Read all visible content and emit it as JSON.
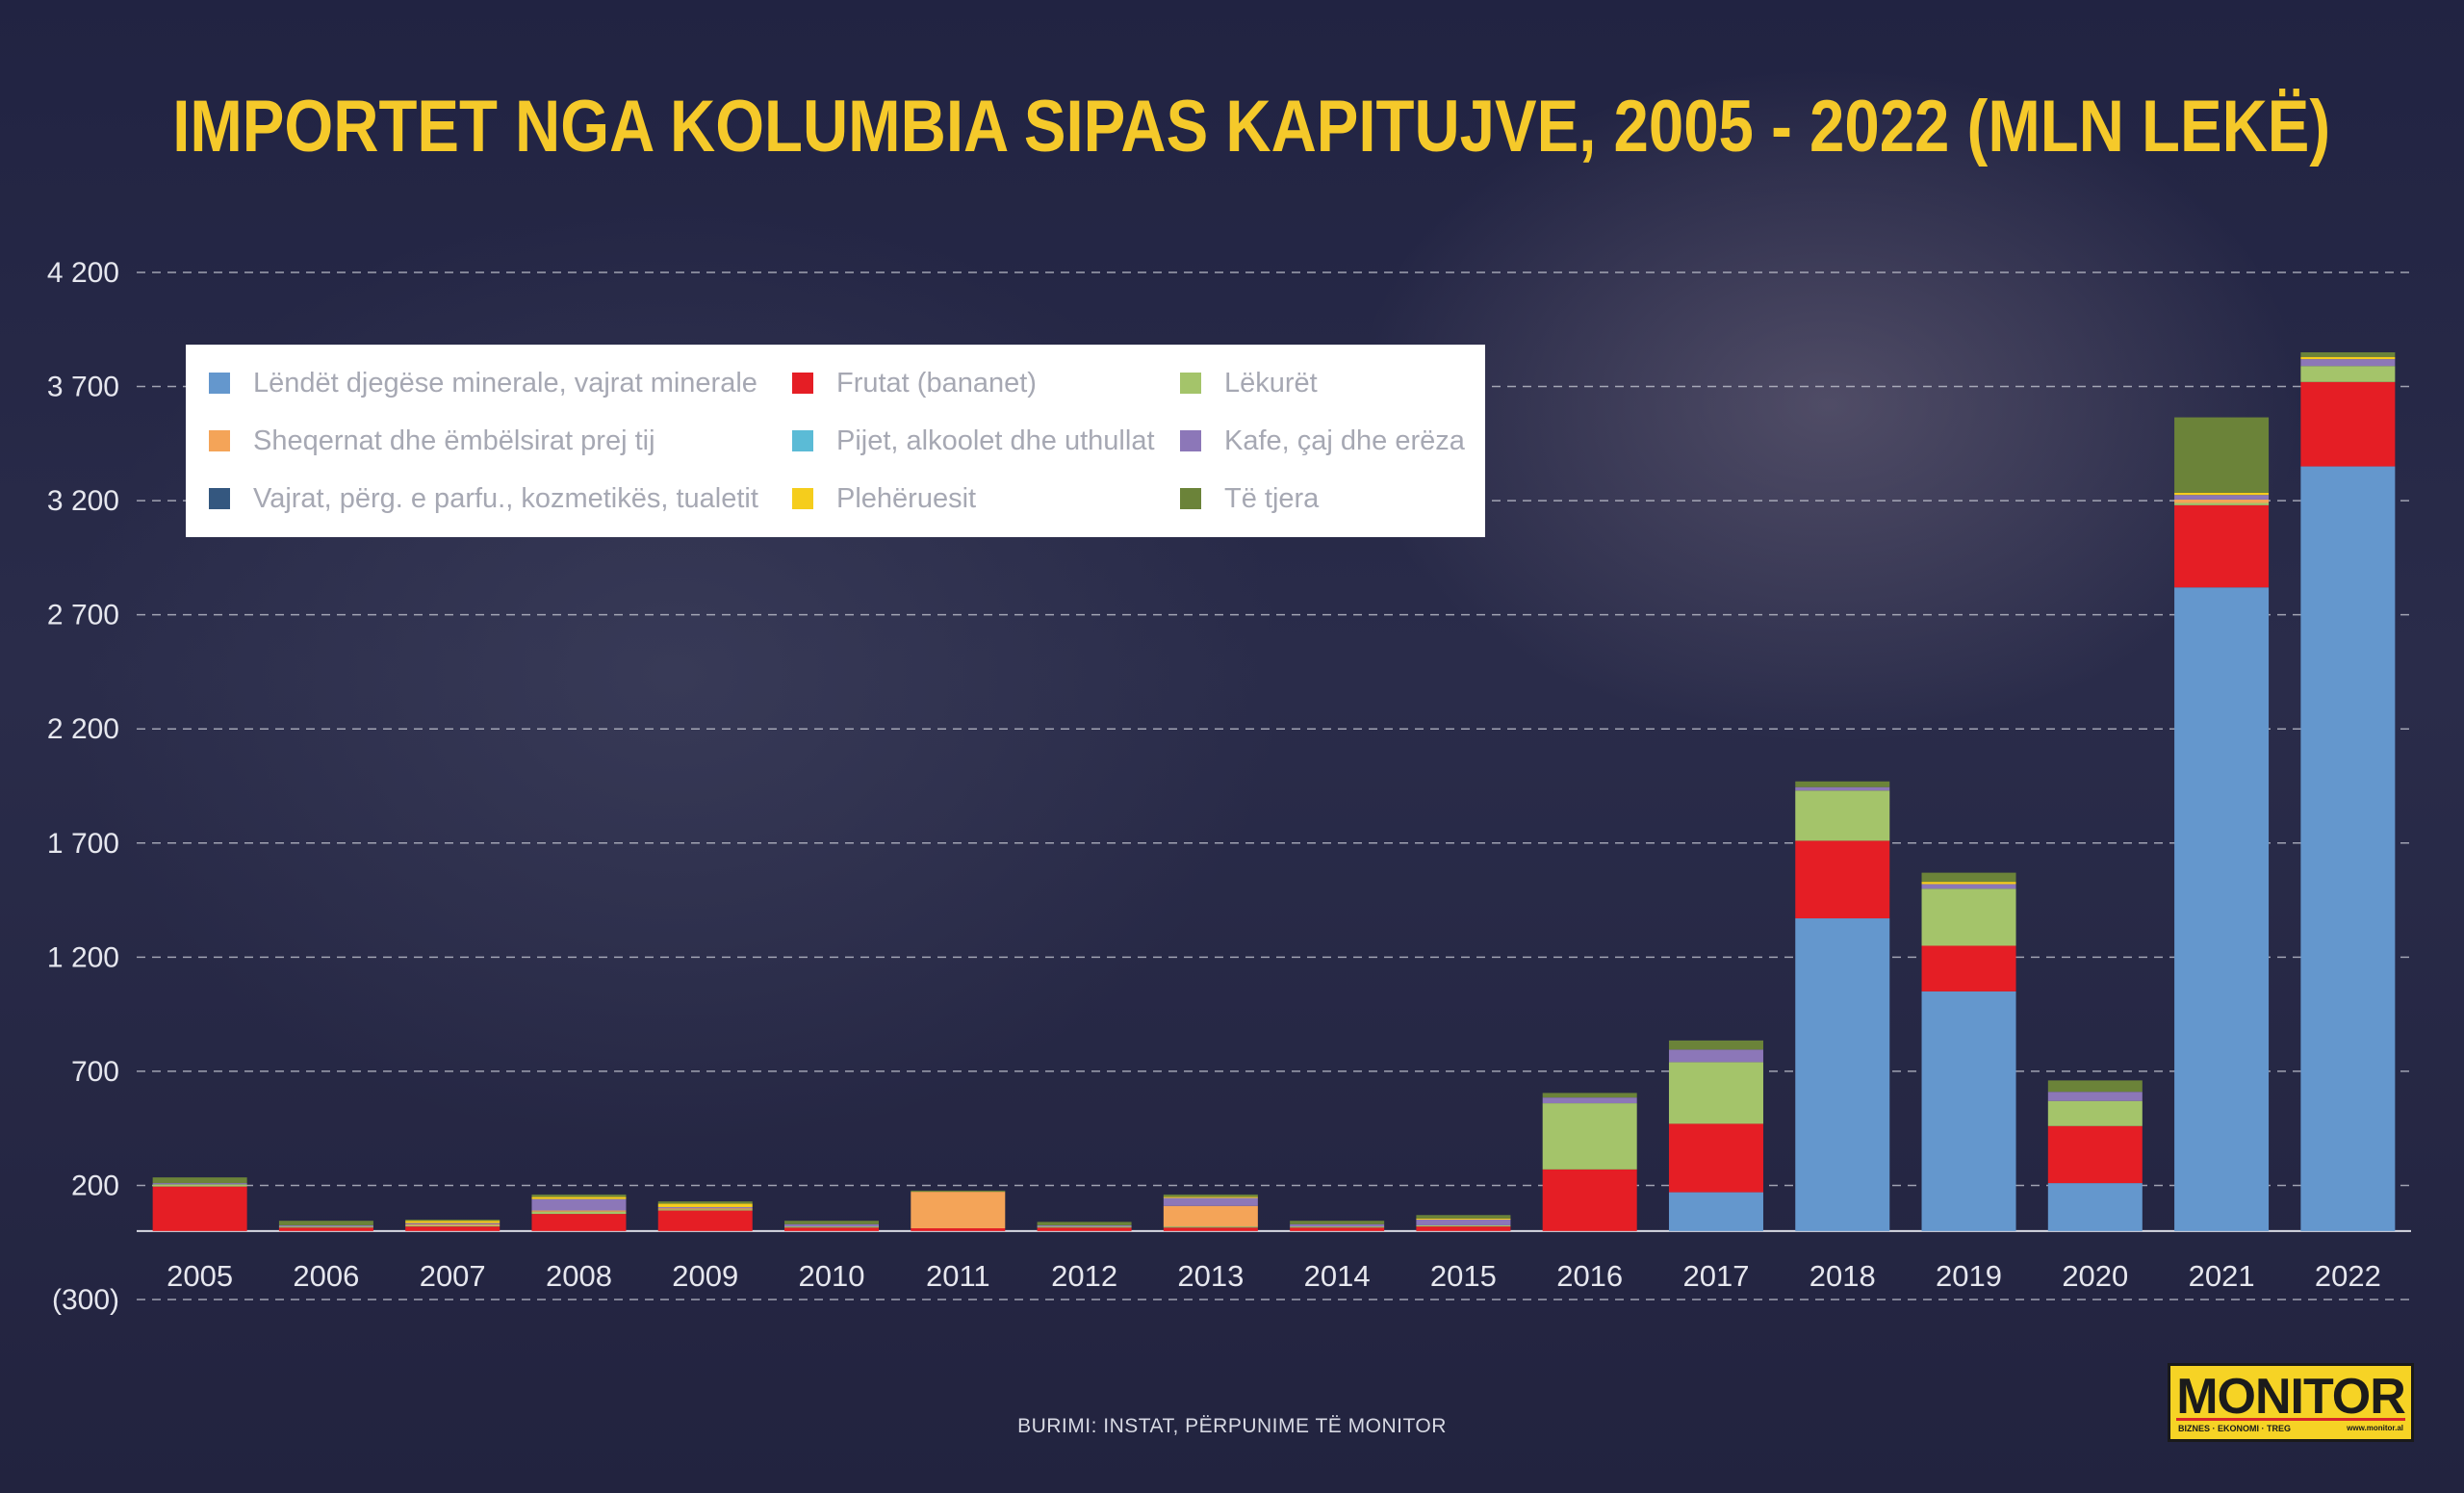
{
  "title": "IMPORTET NGA KOLUMBIA SIPAS KAPITUJVE, 2005 - 2022 (MLN LEKË)",
  "source": "BURIMI: INSTAT, PËRPUNIME TË MONITOR",
  "logo": {
    "name": "MONITOR",
    "tagline": "BIZNES · EKONOMI · TREG",
    "url": "www.monitor.al"
  },
  "chart_data": {
    "type": "bar",
    "stacked": true,
    "title": "IMPORTET NGA KOLUMBIA SIPAS KAPITUJVE, 2005 - 2022 (MLN LEKË)",
    "xlabel": "",
    "ylabel": "",
    "ylim": [
      -300,
      4200
    ],
    "y_ticks": [
      4200,
      3700,
      3200,
      2700,
      2200,
      1700,
      1200,
      700,
      200,
      -300
    ],
    "y_tick_labels": [
      "4 200",
      "3 700",
      "3 200",
      "2 700",
      "2 200",
      "1 700",
      "1 200",
      "700",
      "200",
      "(300)"
    ],
    "grid": true,
    "legend_position": "top-left",
    "categories": [
      "2005",
      "2006",
      "2007",
      "2008",
      "2009",
      "2010",
      "2011",
      "2012",
      "2013",
      "2014",
      "2015",
      "2016",
      "2017",
      "2018",
      "2019",
      "2020",
      "2021",
      "2022"
    ],
    "series": [
      {
        "name": "Lëndët djegëse minerale, vajrat minerale",
        "color": "#6497cd",
        "values": [
          0,
          0,
          0,
          0,
          0,
          0,
          0,
          0,
          0,
          0,
          0,
          0,
          170,
          1370,
          1050,
          210,
          2820,
          3350
        ]
      },
      {
        "name": "Frutat (bananet)",
        "color": "#e51e25",
        "values": [
          195,
          15,
          20,
          75,
          90,
          15,
          12,
          15,
          15,
          15,
          20,
          270,
          300,
          340,
          200,
          250,
          360,
          370
        ]
      },
      {
        "name": "Lëkurët",
        "color": "#a4c46a",
        "values": [
          10,
          5,
          5,
          10,
          5,
          5,
          0,
          5,
          5,
          5,
          5,
          290,
          270,
          220,
          250,
          110,
          10,
          70
        ]
      },
      {
        "name": "Sheqernat dhe ëmbëlsirat prej tij",
        "color": "#f4a458",
        "values": [
          0,
          0,
          5,
          5,
          5,
          0,
          160,
          0,
          90,
          0,
          0,
          0,
          0,
          0,
          0,
          0,
          15,
          0
        ]
      },
      {
        "name": "Pijet, alkoolet dhe uthullat",
        "color": "#5bbbd6",
        "values": [
          0,
          0,
          0,
          0,
          0,
          0,
          0,
          0,
          0,
          0,
          0,
          0,
          0,
          0,
          0,
          0,
          0,
          0
        ]
      },
      {
        "name": "Kafe, çaj dhe erëza",
        "color": "#8c77b8",
        "values": [
          5,
          5,
          5,
          50,
          5,
          10,
          0,
          5,
          35,
          10,
          25,
          25,
          55,
          15,
          20,
          40,
          20,
          30
        ]
      },
      {
        "name": "Vajrat, përg. e parfu., kozmetikës, tualetit",
        "color": "#34577f",
        "values": [
          0,
          0,
          0,
          0,
          0,
          0,
          0,
          0,
          0,
          0,
          0,
          0,
          0,
          0,
          0,
          0,
          0,
          0
        ]
      },
      {
        "name": "Plehëruesit",
        "color": "#f5cd1c",
        "values": [
          0,
          0,
          10,
          10,
          15,
          0,
          0,
          0,
          5,
          0,
          5,
          0,
          0,
          0,
          10,
          0,
          10,
          10
        ]
      },
      {
        "name": "Të tjera",
        "color": "#6b8339",
        "values": [
          25,
          20,
          5,
          10,
          10,
          15,
          5,
          15,
          10,
          15,
          15,
          20,
          40,
          25,
          40,
          50,
          330,
          20
        ]
      }
    ]
  },
  "legend_layout_order": [
    0,
    1,
    2,
    3,
    4,
    5,
    6,
    7,
    8
  ]
}
